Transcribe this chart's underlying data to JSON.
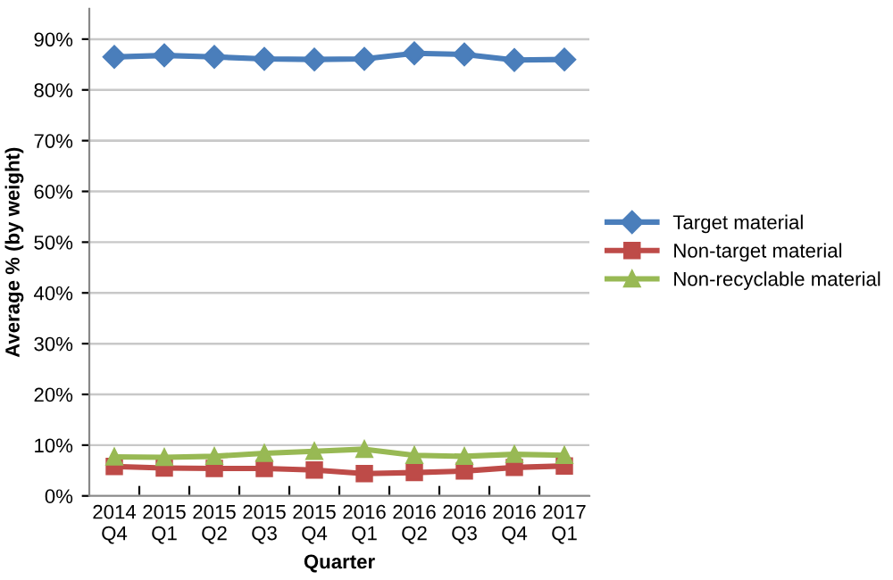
{
  "chart_data": {
    "type": "line",
    "xlabel": "Quarter",
    "ylabel": "Average % (by weight)",
    "categories": [
      "2014\nQ4",
      "2015\nQ1",
      "2015\nQ2",
      "2015\nQ3",
      "2015\nQ4",
      "2016\nQ1",
      "2016\nQ2",
      "2016\nQ3",
      "2016\nQ4",
      "2017\nQ1"
    ],
    "series": [
      {
        "name": "Target material",
        "color": "#4a7ebb",
        "marker": "diamond",
        "values": [
          86.5,
          86.8,
          86.5,
          86.1,
          86.0,
          86.1,
          87.2,
          87.0,
          85.9,
          86.0
        ]
      },
      {
        "name": "Non-target material",
        "color": "#be4b48",
        "marker": "square",
        "values": [
          5.8,
          5.5,
          5.4,
          5.4,
          5.1,
          4.4,
          4.6,
          4.9,
          5.6,
          5.9
        ]
      },
      {
        "name": "Non-recyclable material",
        "color": "#98b954",
        "marker": "triangle",
        "values": [
          7.7,
          7.6,
          7.8,
          8.4,
          8.8,
          9.2,
          8.0,
          7.8,
          8.2,
          8.0
        ]
      }
    ],
    "ylim": [
      0,
      96
    ],
    "yticks": [
      {
        "value": 0,
        "label": "0%"
      },
      {
        "value": 10,
        "label": "10%"
      },
      {
        "value": 20,
        "label": "20%"
      },
      {
        "value": 30,
        "label": "30%"
      },
      {
        "value": 40,
        "label": "40%"
      },
      {
        "value": 50,
        "label": "50%"
      },
      {
        "value": 60,
        "label": "60%"
      },
      {
        "value": 70,
        "label": "70%"
      },
      {
        "value": 80,
        "label": "80%"
      },
      {
        "value": 90,
        "label": "90%"
      }
    ],
    "grid": "y",
    "legend": "right"
  }
}
